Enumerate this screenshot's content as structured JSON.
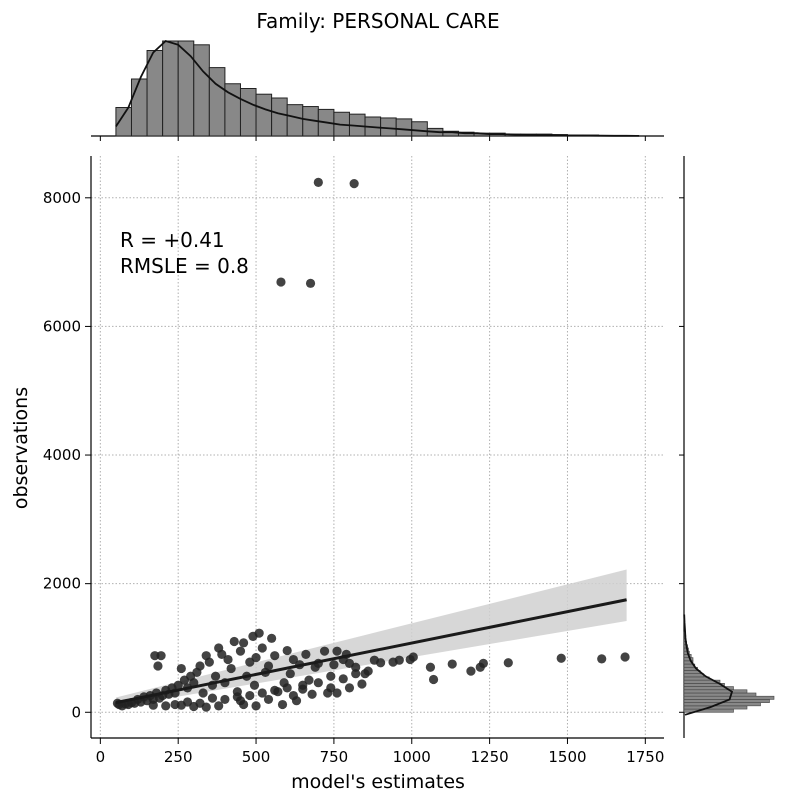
{
  "title": "Family: PERSONAL CARE",
  "chart_data": {
    "type": "scatter",
    "title": "Family: PERSONAL CARE",
    "xlabel": "model's estimates",
    "ylabel": "observations",
    "xlim": [
      -30,
      1810
    ],
    "ylim": [
      -400,
      8650
    ],
    "xticks": [
      0,
      250,
      500,
      750,
      1000,
      1250,
      1500,
      1750
    ],
    "yticks": [
      0,
      2000,
      4000,
      6000,
      8000
    ],
    "grid": true,
    "stats_lines": [
      "R = +0.41",
      "RMSLE =  0.8"
    ],
    "regression": {
      "x": [
        50,
        1690
      ],
      "y": [
        150,
        1750
      ],
      "ci_upper": [
        230,
        2220
      ],
      "ci_lower": [
        80,
        1420
      ]
    },
    "points": [
      [
        700,
        8240
      ],
      [
        815,
        8220
      ],
      [
        580,
        6690
      ],
      [
        675,
        6670
      ],
      [
        1685,
        860
      ],
      [
        1610,
        830
      ],
      [
        1480,
        840
      ],
      [
        1310,
        770
      ],
      [
        1230,
        760
      ],
      [
        1220,
        700
      ],
      [
        1190,
        640
      ],
      [
        1130,
        750
      ],
      [
        1070,
        510
      ],
      [
        1060,
        700
      ],
      [
        1005,
        860
      ],
      [
        995,
        820
      ],
      [
        960,
        810
      ],
      [
        940,
        780
      ],
      [
        900,
        770
      ],
      [
        880,
        810
      ],
      [
        850,
        600
      ],
      [
        840,
        440
      ],
      [
        820,
        700
      ],
      [
        800,
        760
      ],
      [
        790,
        900
      ],
      [
        780,
        820
      ],
      [
        760,
        950
      ],
      [
        750,
        740
      ],
      [
        740,
        560
      ],
      [
        730,
        300
      ],
      [
        720,
        950
      ],
      [
        700,
        760
      ],
      [
        690,
        700
      ],
      [
        670,
        500
      ],
      [
        660,
        900
      ],
      [
        650,
        360
      ],
      [
        640,
        740
      ],
      [
        630,
        180
      ],
      [
        620,
        820
      ],
      [
        610,
        600
      ],
      [
        600,
        960
      ],
      [
        590,
        460
      ],
      [
        585,
        120
      ],
      [
        570,
        320
      ],
      [
        560,
        880
      ],
      [
        550,
        1150
      ],
      [
        540,
        720
      ],
      [
        530,
        620
      ],
      [
        520,
        1000
      ],
      [
        510,
        1230
      ],
      [
        500,
        850
      ],
      [
        495,
        420
      ],
      [
        490,
        1180
      ],
      [
        480,
        780
      ],
      [
        470,
        560
      ],
      [
        460,
        1080
      ],
      [
        450,
        950
      ],
      [
        440,
        320
      ],
      [
        430,
        1100
      ],
      [
        420,
        680
      ],
      [
        410,
        820
      ],
      [
        400,
        460
      ],
      [
        390,
        900
      ],
      [
        380,
        1000
      ],
      [
        370,
        560
      ],
      [
        360,
        420
      ],
      [
        350,
        780
      ],
      [
        340,
        880
      ],
      [
        330,
        300
      ],
      [
        320,
        720
      ],
      [
        310,
        620
      ],
      [
        300,
        460
      ],
      [
        290,
        560
      ],
      [
        280,
        380
      ],
      [
        270,
        500
      ],
      [
        260,
        680
      ],
      [
        250,
        420
      ],
      [
        240,
        300
      ],
      [
        230,
        380
      ],
      [
        220,
        280
      ],
      [
        210,
        340
      ],
      [
        200,
        260
      ],
      [
        195,
        880
      ],
      [
        190,
        220
      ],
      [
        185,
        720
      ],
      [
        180,
        300
      ],
      [
        175,
        880
      ],
      [
        170,
        200
      ],
      [
        160,
        260
      ],
      [
        150,
        180
      ],
      [
        140,
        240
      ],
      [
        130,
        160
      ],
      [
        120,
        200
      ],
      [
        110,
        140
      ],
      [
        100,
        150
      ],
      [
        90,
        120
      ],
      [
        80,
        130
      ],
      [
        70,
        100
      ],
      [
        60,
        120
      ],
      [
        55,
        140
      ],
      [
        240,
        120
      ],
      [
        280,
        160
      ],
      [
        320,
        140
      ],
      [
        360,
        220
      ],
      [
        400,
        200
      ],
      [
        440,
        240
      ],
      [
        480,
        260
      ],
      [
        520,
        300
      ],
      [
        560,
        340
      ],
      [
        600,
        380
      ],
      [
        460,
        120
      ],
      [
        500,
        100
      ],
      [
        380,
        100
      ],
      [
        340,
        80
      ],
      [
        300,
        90
      ],
      [
        260,
        110
      ],
      [
        210,
        100
      ],
      [
        170,
        110
      ],
      [
        650,
        420
      ],
      [
        700,
        460
      ],
      [
        740,
        380
      ],
      [
        780,
        520
      ],
      [
        820,
        600
      ],
      [
        860,
        640
      ],
      [
        760,
        300
      ],
      [
        800,
        380
      ],
      [
        540,
        200
      ],
      [
        620,
        260
      ],
      [
        680,
        280
      ],
      [
        450,
        180
      ]
    ],
    "hist_x_density": [
      0.1,
      0.3,
      0.62,
      0.88,
      1.0,
      0.96,
      0.84,
      0.68,
      0.55,
      0.46,
      0.39,
      0.33,
      0.28,
      0.24,
      0.21,
      0.18,
      0.16,
      0.14,
      0.12,
      0.11,
      0.1,
      0.09,
      0.08,
      0.07,
      0.06,
      0.05,
      0.04,
      0.04,
      0.03,
      0.03,
      0.02,
      0.02,
      0.015,
      0.012,
      0.01,
      0.008,
      0.006,
      0.005,
      0.004,
      0.003,
      0.002,
      0.002,
      0.001
    ],
    "hist_x_bins": [
      50,
      100,
      150,
      200,
      250,
      300,
      350,
      400,
      450,
      500,
      550,
      600,
      650,
      700,
      750,
      800,
      850,
      900,
      950,
      1000,
      1050,
      1100,
      1150,
      1200,
      1250,
      1300,
      1350,
      1400,
      1450,
      1500,
      1550,
      1600,
      1650,
      1700
    ],
    "hist_x_heights": [
      0.3,
      0.6,
      0.9,
      1.0,
      1.0,
      0.96,
      0.72,
      0.55,
      0.5,
      0.44,
      0.4,
      0.33,
      0.31,
      0.28,
      0.25,
      0.23,
      0.2,
      0.19,
      0.18,
      0.15,
      0.08,
      0.05,
      0.04,
      0.03,
      0.03,
      0.02,
      0.02,
      0.02,
      0.015,
      0.01,
      0.01,
      0.005,
      0.005
    ],
    "hist_y_bins": [
      0,
      50,
      100,
      150,
      200,
      250,
      300,
      350,
      400,
      450,
      500,
      550,
      600,
      650,
      700,
      750,
      800,
      850,
      900,
      950,
      1000,
      1050,
      1100,
      1150,
      1200,
      1250
    ],
    "hist_y_heights": [
      0.55,
      0.7,
      0.85,
      0.95,
      1.0,
      0.8,
      0.7,
      0.55,
      0.45,
      0.4,
      0.28,
      0.22,
      0.18,
      0.15,
      0.12,
      0.1,
      0.1,
      0.08,
      0.06,
      0.05,
      0.04,
      0.03,
      0.02,
      0.02,
      0.01
    ]
  }
}
